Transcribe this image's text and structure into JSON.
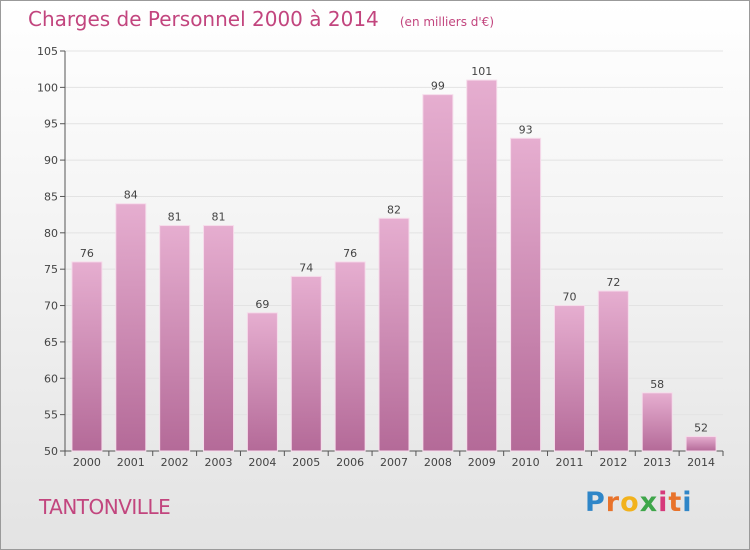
{
  "title": "Charges de Personnel 2000 à 2014",
  "unit": "(en milliers d'€)",
  "town": "TANTONVILLE",
  "logo": {
    "letters": [
      "P",
      "r",
      "o",
      "x",
      "i",
      "t",
      "i"
    ],
    "colors": [
      "#2f86c8",
      "#e8732b",
      "#f2b21c",
      "#3ea64a",
      "#d6397b",
      "#e8732b",
      "#2f86c8"
    ]
  },
  "colors": {
    "bar_top": "#e6aed0",
    "bar_bottom": "#b46a98",
    "title": "#c2457e",
    "grid": "#e3e3e3"
  },
  "chart_data": {
    "type": "bar",
    "categories": [
      "2000",
      "2001",
      "2002",
      "2003",
      "2004",
      "2005",
      "2006",
      "2007",
      "2008",
      "2009",
      "2010",
      "2011",
      "2012",
      "2013",
      "2014"
    ],
    "values": [
      76,
      84,
      81,
      81,
      69,
      74,
      76,
      82,
      99,
      101,
      93,
      70,
      72,
      58,
      52
    ],
    "title": "Charges de Personnel 2000 à 2014",
    "ylabel": "",
    "xlabel": "",
    "ylim": [
      50,
      105
    ],
    "yticks": [
      50,
      55,
      60,
      65,
      70,
      75,
      80,
      85,
      90,
      95,
      100,
      105
    ],
    "grid": true
  }
}
